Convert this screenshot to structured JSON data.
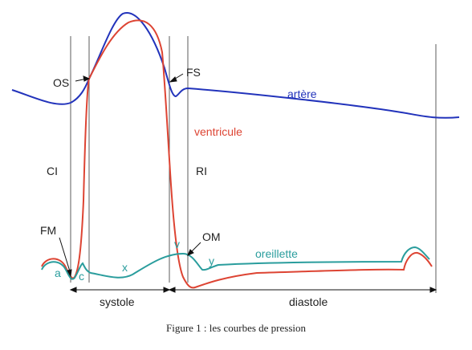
{
  "labels": {
    "os": "OS",
    "fs": "FS",
    "artery": "artère",
    "ventricle": "ventricule",
    "ci": "CI",
    "ri": "RI",
    "fm": "FM",
    "om": "OM",
    "v": "v",
    "atrium": "oreillette",
    "y": "y",
    "a": "a",
    "c": "c",
    "x": "x"
  },
  "phases": {
    "systole": "systole",
    "diastole": "diastole"
  },
  "caption": "Figure 1 : les courbes de pression",
  "colors": {
    "artery": "#2233bb",
    "ventricle": "#dd4433",
    "atrium": "#2a9d9d",
    "text_dark": "#222222"
  }
}
